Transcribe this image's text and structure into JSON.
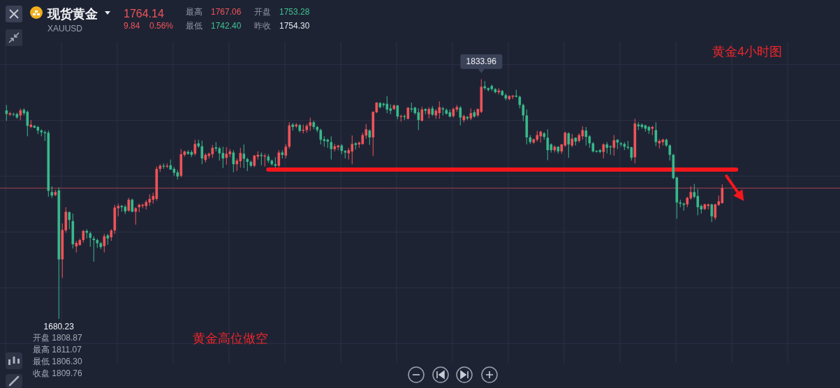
{
  "chart_data": {
    "type": "candlestick",
    "title": "现货黄金",
    "subtitle": "XAUUSD",
    "categories": [
      null,
      null,
      null,
      null,
      null,
      null,
      null,
      null,
      null,
      null,
      null,
      null,
      null,
      null,
      null,
      null,
      null,
      null,
      null,
      null,
      null,
      null,
      null,
      null,
      null,
      null,
      null,
      null,
      null,
      null,
      null,
      null,
      null,
      null,
      null,
      null,
      null,
      null,
      null,
      null,
      null,
      null,
      null,
      null,
      null,
      null,
      null,
      null,
      null,
      null,
      null,
      null,
      null,
      null,
      null,
      null,
      null,
      null,
      null,
      null,
      null,
      null,
      null,
      null,
      null,
      null,
      null,
      null,
      null,
      null,
      null,
      null,
      null,
      null,
      null,
      null,
      null,
      null,
      null,
      null,
      null,
      null,
      null,
      null,
      null,
      null,
      null,
      null,
      null,
      null,
      null,
      null,
      null,
      null,
      null,
      null,
      null,
      null,
      null,
      null,
      null,
      null,
      null,
      null,
      null,
      null,
      null,
      null,
      null,
      null,
      null,
      null,
      null,
      null,
      null,
      null,
      null,
      null,
      null,
      null,
      null,
      null,
      null,
      null,
      null,
      null,
      null,
      null,
      null,
      null,
      null,
      null,
      null,
      null,
      null,
      null,
      null,
      null,
      null,
      null,
      null,
      null,
      null,
      null,
      null,
      null,
      null,
      null,
      null,
      null,
      null,
      null,
      null,
      null,
      null,
      null,
      null,
      null,
      null,
      null,
      null,
      null,
      null,
      null,
      null,
      null,
      null,
      null,
      null,
      null,
      null,
      null,
      null,
      null,
      null,
      null,
      null,
      null,
      null,
      null,
      null,
      null,
      null,
      null,
      null,
      null,
      null,
      null,
      null,
      null,
      null,
      null,
      null,
      null,
      null,
      null,
      null,
      null,
      null,
      null,
      null,
      null,
      null,
      null,
      null,
      null,
      null,
      null,
      null,
      null
    ],
    "ohlc": [
      [
        1814.0,
        1817.5,
        1807.3,
        1811.7
      ],
      [
        1811.3,
        1813.1,
        1810.4,
        1812.2
      ],
      [
        1811.7,
        1812.6,
        1810.4,
        1811.3
      ],
      [
        1811.7,
        1812.6,
        1808.6,
        1809.5
      ],
      [
        1810.8,
        1815.3,
        1807.7,
        1814.0
      ],
      [
        1814.4,
        1815.3,
        1810.8,
        1812.2
      ],
      [
        1813.1,
        1814.0,
        1797.4,
        1804.1
      ],
      [
        1803.4,
        1807.8,
        1802.7,
        1804.9
      ],
      [
        1804.1,
        1804.6,
        1802.8,
        1802.9
      ],
      [
        1803.4,
        1804.1,
        1798.9,
        1801.1
      ],
      [
        1801.1,
        1801.9,
        1797.4,
        1800.0
      ],
      [
        1800.0,
        1801.1,
        1794.4,
        1799.3
      ],
      [
        1799.7,
        1801.1,
        1758.6,
        1762.4
      ],
      [
        1761.6,
        1765.3,
        1757.9,
        1759.4
      ],
      [
        1759.7,
        1763.0,
        1759.0,
        1761.6
      ],
      [
        1762.7,
        1764.6,
        1680.23,
        1718.4
      ],
      [
        1718.4,
        1741.5,
        1706.5,
        1737.3
      ],
      [
        1737.0,
        1751.9,
        1735.5,
        1749.0
      ],
      [
        1748.7,
        1749.2,
        1737.8,
        1743.7
      ],
      [
        1743.0,
        1747.8,
        1725.4,
        1728.1
      ],
      [
        1726.7,
        1730.3,
        1722.9,
        1729.0
      ],
      [
        1727.6,
        1731.8,
        1727.3,
        1730.8
      ],
      [
        1730.8,
        1737.3,
        1729.3,
        1736.7
      ],
      [
        1736.7,
        1737.8,
        1731.8,
        1735.5
      ],
      [
        1735.2,
        1736.3,
        1726.6,
        1732.2
      ],
      [
        1731.8,
        1733.3,
        1716.9,
        1730.8
      ],
      [
        1730.8,
        1731.8,
        1725.8,
        1728.8
      ],
      [
        1728.8,
        1729.6,
        1725.1,
        1726.3
      ],
      [
        1726.9,
        1734.8,
        1722.9,
        1733.3
      ],
      [
        1733.8,
        1734.8,
        1727.8,
        1731.8
      ],
      [
        1732.6,
        1737.8,
        1730.3,
        1737.0
      ],
      [
        1737.0,
        1753.4,
        1734.8,
        1751.7
      ],
      [
        1751.2,
        1754.2,
        1746.0,
        1752.7
      ],
      [
        1752.7,
        1753.4,
        1749.0,
        1751.9
      ],
      [
        1752.2,
        1753.4,
        1747.5,
        1749.2
      ],
      [
        1749.7,
        1757.9,
        1749.0,
        1756.7
      ],
      [
        1756.7,
        1757.4,
        1748.7,
        1749.0
      ],
      [
        1749.0,
        1751.9,
        1740.7,
        1751.2
      ],
      [
        1751.9,
        1754.2,
        1748.7,
        1753.4
      ],
      [
        1752.7,
        1754.2,
        1751.2,
        1753.4
      ],
      [
        1752.7,
        1756.4,
        1750.5,
        1755.2
      ],
      [
        1754.9,
        1760.2,
        1752.7,
        1757.2
      ],
      [
        1756.7,
        1761.2,
        1754.2,
        1759.1
      ],
      [
        1757.2,
        1778.0,
        1756.1,
        1776.5
      ],
      [
        1776.5,
        1779.5,
        1774.6,
        1778.5
      ],
      [
        1778.5,
        1780.0,
        1776.5,
        1777.9
      ],
      [
        1777.9,
        1780.0,
        1777.0,
        1778.5
      ],
      [
        1778.8,
        1782.5,
        1775.8,
        1776.1
      ],
      [
        1776.5,
        1777.6,
        1772.1,
        1774.0
      ],
      [
        1774.3,
        1775.8,
        1769.6,
        1771.6
      ],
      [
        1772.1,
        1789.2,
        1771.0,
        1785.9
      ],
      [
        1785.5,
        1788.2,
        1784.4,
        1787.7
      ],
      [
        1787.4,
        1788.5,
        1785.5,
        1786.2
      ],
      [
        1787.3,
        1788.5,
        1784.0,
        1785.5
      ],
      [
        1786.2,
        1795.2,
        1785.0,
        1792.5
      ],
      [
        1792.9,
        1795.2,
        1790.0,
        1791.0
      ],
      [
        1791.0,
        1794.7,
        1779.5,
        1783.2
      ],
      [
        1782.2,
        1786.5,
        1780.6,
        1785.5
      ],
      [
        1784.8,
        1787.0,
        1783.2,
        1786.2
      ],
      [
        1785.9,
        1791.9,
        1783.6,
        1790.0
      ],
      [
        1790.3,
        1793.7,
        1787.7,
        1789.5
      ],
      [
        1789.7,
        1790.7,
        1781.8,
        1786.5
      ],
      [
        1786.7,
        1790.7,
        1777.0,
        1783.2
      ],
      [
        1783.6,
        1790.4,
        1779.1,
        1786.2
      ],
      [
        1785.9,
        1789.2,
        1784.0,
        1787.7
      ],
      [
        1787.0,
        1788.5,
        1774.3,
        1779.5
      ],
      [
        1779.5,
        1783.2,
        1775.1,
        1781.8
      ],
      [
        1781.4,
        1790.0,
        1777.3,
        1786.7
      ],
      [
        1786.2,
        1792.2,
        1777.0,
        1783.0
      ],
      [
        1782.8,
        1783.6,
        1775.1,
        1781.0
      ],
      [
        1781.0,
        1781.8,
        1777.6,
        1778.5
      ],
      [
        1778.5,
        1785.5,
        1777.6,
        1785.0
      ],
      [
        1784.4,
        1787.7,
        1782.5,
        1785.5
      ],
      [
        1785.5,
        1787.0,
        1778.8,
        1784.8
      ],
      [
        1784.4,
        1786.2,
        1778.0,
        1785.0
      ],
      [
        1784.4,
        1785.9,
        1780.3,
        1781.8
      ],
      [
        1781.8,
        1782.5,
        1778.5,
        1779.5
      ],
      [
        1779.5,
        1784.0,
        1777.3,
        1778.5
      ],
      [
        1778.5,
        1788.5,
        1777.6,
        1787.0
      ],
      [
        1787.0,
        1788.5,
        1783.2,
        1785.5
      ],
      [
        1785.0,
        1792.5,
        1783.2,
        1790.7
      ],
      [
        1790.7,
        1806.4,
        1789.5,
        1804.4
      ],
      [
        1804.9,
        1805.9,
        1801.1,
        1803.4
      ],
      [
        1803.8,
        1805.9,
        1802.7,
        1804.9
      ],
      [
        1804.6,
        1805.3,
        1800.0,
        1800.9
      ],
      [
        1800.9,
        1804.9,
        1799.3,
        1801.6
      ],
      [
        1801.4,
        1805.3,
        1799.7,
        1804.1
      ],
      [
        1804.1,
        1809.4,
        1800.9,
        1806.4
      ],
      [
        1806.4,
        1807.4,
        1801.9,
        1803.4
      ],
      [
        1803.4,
        1804.1,
        1800.0,
        1801.4
      ],
      [
        1801.4,
        1802.3,
        1792.2,
        1795.2
      ],
      [
        1795.5,
        1797.4,
        1790.7,
        1794.4
      ],
      [
        1795.2,
        1795.9,
        1790.0,
        1794.0
      ],
      [
        1793.7,
        1797.4,
        1782.5,
        1789.2
      ],
      [
        1789.2,
        1792.5,
        1787.7,
        1791.0
      ],
      [
        1790.4,
        1791.9,
        1788.5,
        1791.5
      ],
      [
        1791.5,
        1792.5,
        1785.9,
        1788.0
      ],
      [
        1788.0,
        1788.5,
        1783.2,
        1787.0
      ],
      [
        1786.5,
        1790.0,
        1782.5,
        1788.5
      ],
      [
        1787.7,
        1797.9,
        1779.5,
        1792.5
      ],
      [
        1792.9,
        1793.7,
        1788.9,
        1791.9
      ],
      [
        1792.2,
        1794.0,
        1790.0,
        1793.3
      ],
      [
        1792.5,
        1799.7,
        1791.9,
        1798.2
      ],
      [
        1797.9,
        1805.3,
        1795.9,
        1801.9
      ],
      [
        1801.1,
        1801.9,
        1791.9,
        1796.7
      ],
      [
        1796.7,
        1813.4,
        1784.8,
        1813.1
      ],
      [
        1812.8,
        1819.3,
        1812.3,
        1819.0
      ],
      [
        1818.8,
        1819.3,
        1815.3,
        1816.1
      ],
      [
        1818.3,
        1819.0,
        1816.1,
        1817.5
      ],
      [
        1818.3,
        1823.2,
        1812.3,
        1814.6
      ],
      [
        1815.3,
        1817.9,
        1811.6,
        1813.8
      ],
      [
        1814.9,
        1817.9,
        1814.3,
        1817.2
      ],
      [
        1817.2,
        1817.5,
        1808.3,
        1810.1
      ],
      [
        1809.8,
        1811.3,
        1806.8,
        1810.4
      ],
      [
        1810.4,
        1811.3,
        1807.8,
        1809.8
      ],
      [
        1808.6,
        1816.1,
        1808.3,
        1815.8
      ],
      [
        1815.3,
        1819.0,
        1812.8,
        1814.6
      ],
      [
        1815.8,
        1816.3,
        1811.3,
        1812.3
      ],
      [
        1812.8,
        1815.3,
        1801.4,
        1807.8
      ],
      [
        1807.4,
        1816.3,
        1806.8,
        1814.6
      ],
      [
        1814.9,
        1815.3,
        1811.6,
        1813.8
      ],
      [
        1811.6,
        1816.1,
        1808.9,
        1814.9
      ],
      [
        1815.3,
        1816.8,
        1810.4,
        1811.3
      ],
      [
        1810.8,
        1814.9,
        1808.6,
        1813.8
      ],
      [
        1812.3,
        1819.8,
        1808.6,
        1816.1
      ],
      [
        1815.3,
        1816.3,
        1810.8,
        1814.6
      ],
      [
        1814.3,
        1815.3,
        1811.3,
        1811.9
      ],
      [
        1812.8,
        1814.6,
        1809.4,
        1810.1
      ],
      [
        1810.4,
        1815.8,
        1809.4,
        1814.9
      ],
      [
        1814.6,
        1817.5,
        1813.1,
        1816.1
      ],
      [
        1815.8,
        1816.8,
        1804.4,
        1809.4
      ],
      [
        1807.8,
        1811.3,
        1806.4,
        1810.4
      ],
      [
        1809.8,
        1810.4,
        1807.8,
        1808.9
      ],
      [
        1808.9,
        1815.3,
        1807.8,
        1812.3
      ],
      [
        1812.8,
        1814.3,
        1809.4,
        1810.1
      ],
      [
        1810.8,
        1815.3,
        1809.8,
        1814.9
      ],
      [
        1813.1,
        1833.96,
        1812.3,
        1829.2
      ],
      [
        1829.5,
        1832.8,
        1827.2,
        1828.3
      ],
      [
        1828.3,
        1828.7,
        1826.2,
        1827.2
      ],
      [
        1829.7,
        1830.6,
        1826.5,
        1827.7
      ],
      [
        1827.7,
        1828.3,
        1825.0,
        1825.7
      ],
      [
        1825.7,
        1828.3,
        1824.3,
        1826.8
      ],
      [
        1826.5,
        1827.2,
        1823.2,
        1823.8
      ],
      [
        1823.8,
        1825.0,
        1820.5,
        1821.7
      ],
      [
        1821.3,
        1823.8,
        1820.5,
        1823.2
      ],
      [
        1822.8,
        1823.8,
        1821.3,
        1823.5
      ],
      [
        1823.5,
        1827.2,
        1822.3,
        1822.8
      ],
      [
        1822.8,
        1823.5,
        1815.3,
        1817.5
      ],
      [
        1817.5,
        1818.3,
        1807.1,
        1810.8
      ],
      [
        1810.8,
        1814.6,
        1792.2,
        1796.7
      ],
      [
        1796.7,
        1798.2,
        1792.5,
        1793.7
      ],
      [
        1793.4,
        1795.9,
        1792.5,
        1795.5
      ],
      [
        1795.2,
        1800.9,
        1794.0,
        1798.2
      ],
      [
        1797.4,
        1800.9,
        1793.4,
        1800.4
      ],
      [
        1799.3,
        1800.0,
        1795.2,
        1797.0
      ],
      [
        1796.5,
        1801.9,
        1782.1,
        1788.5
      ],
      [
        1792.2,
        1792.9,
        1787.0,
        1788.5
      ],
      [
        1788.5,
        1791.5,
        1787.0,
        1790.7
      ],
      [
        1790.7,
        1791.0,
        1786.2,
        1787.7
      ],
      [
        1787.7,
        1792.5,
        1786.2,
        1792.2
      ],
      [
        1791.5,
        1800.4,
        1790.7,
        1799.7
      ],
      [
        1799.3,
        1800.0,
        1783.6,
        1792.2
      ],
      [
        1791.5,
        1798.9,
        1790.4,
        1795.9
      ],
      [
        1796.5,
        1796.7,
        1791.5,
        1794.0
      ],
      [
        1794.4,
        1799.3,
        1793.4,
        1798.2
      ],
      [
        1797.4,
        1803.8,
        1795.2,
        1801.4
      ],
      [
        1801.1,
        1803.4,
        1791.5,
        1797.0
      ],
      [
        1797.4,
        1798.2,
        1790.0,
        1792.9
      ],
      [
        1792.9,
        1793.7,
        1787.0,
        1787.7
      ],
      [
        1788.0,
        1788.5,
        1787.0,
        1787.4
      ],
      [
        1788.5,
        1789.2,
        1786.5,
        1787.4
      ],
      [
        1787.4,
        1792.9,
        1783.2,
        1792.2
      ],
      [
        1792.2,
        1793.7,
        1786.5,
        1790.0
      ],
      [
        1791.0,
        1791.5,
        1785.5,
        1790.4
      ],
      [
        1790.0,
        1798.2,
        1785.0,
        1794.9
      ],
      [
        1795.2,
        1795.5,
        1789.2,
        1793.4
      ],
      [
        1792.9,
        1793.7,
        1790.7,
        1792.2
      ],
      [
        1792.5,
        1793.7,
        1788.5,
        1790.7
      ],
      [
        1790.7,
        1794.4,
        1788.9,
        1790.0
      ],
      [
        1790.4,
        1790.7,
        1781.8,
        1783.6
      ],
      [
        1784.0,
        1808.6,
        1780.0,
        1805.6
      ],
      [
        1804.9,
        1806.4,
        1801.4,
        1803.8
      ],
      [
        1804.9,
        1805.6,
        1802.3,
        1803.4
      ],
      [
        1804.4,
        1804.9,
        1800.4,
        1802.3
      ],
      [
        1803.4,
        1804.1,
        1798.9,
        1801.1
      ],
      [
        1802.3,
        1804.1,
        1798.2,
        1803.4
      ],
      [
        1801.4,
        1806.4,
        1791.0,
        1793.7
      ],
      [
        1792.9,
        1795.5,
        1789.5,
        1794.4
      ],
      [
        1793.7,
        1795.9,
        1791.5,
        1795.2
      ],
      [
        1795.2,
        1795.9,
        1790.7,
        1791.5
      ],
      [
        1791.5,
        1792.2,
        1781.8,
        1785.5
      ],
      [
        1785.5,
        1786.2,
        1769.8,
        1770.6
      ],
      [
        1771.0,
        1771.3,
        1744.5,
        1754.9
      ],
      [
        1754.9,
        1756.7,
        1751.9,
        1754.2
      ],
      [
        1754.2,
        1754.9,
        1749.7,
        1753.4
      ],
      [
        1753.7,
        1758.6,
        1751.9,
        1757.9
      ],
      [
        1757.6,
        1765.3,
        1756.7,
        1761.6
      ],
      [
        1761.6,
        1766.8,
        1757.6,
        1758.6
      ],
      [
        1759.1,
        1763.6,
        1746.7,
        1751.9
      ],
      [
        1752.7,
        1753.7,
        1747.8,
        1750.5
      ],
      [
        1750.8,
        1754.2,
        1750.1,
        1753.7
      ],
      [
        1752.7,
        1754.2,
        1750.5,
        1753.7
      ],
      [
        1753.7,
        1754.2,
        1742.4,
        1746.0
      ],
      [
        1745.2,
        1754.2,
        1743.7,
        1753.7
      ],
      [
        1753.4,
        1759.4,
        1752.7,
        1755.7
      ],
      [
        1754.6,
        1766.6,
        1754.2,
        1764.14
      ],
      null,
      null,
      null,
      null
    ],
    "colors": [
      "#38b88a",
      "#ee5458",
      "#38b88a",
      "#38b88a",
      "#ee5458",
      "#38b88a",
      "#38b88a",
      "#ee5458",
      "#38b88a",
      "#38b88a",
      "#38b88a",
      "#38b88a",
      "#38b88a",
      "#38b88a",
      "#ee5458",
      "#38b88a",
      "#ee5458",
      "#ee5458",
      "#38b88a",
      "#38b88a",
      "#ee5458",
      "#ee5458",
      "#ee5458",
      "#38b88a",
      "#38b88a",
      "#38b88a",
      "#38b88a",
      "#38b88a",
      "#ee5458",
      "#38b88a",
      "#ee5458",
      "#ee5458",
      "#ee5458",
      "#38b88a",
      "#38b88a",
      "#ee5458",
      "#38b88a",
      "#ee5458",
      "#ee5458",
      "#ee5458",
      "#ee5458",
      "#ee5458",
      "#ee5458",
      "#ee5458",
      "#ee5458",
      "#38b88a",
      "#ee5458",
      "#38b88a",
      "#38b88a",
      "#38b88a",
      "#ee5458",
      "#ee5458",
      "#38b88a",
      "#38b88a",
      "#ee5458",
      "#38b88a",
      "#38b88a",
      "#ee5458",
      "#ee5458",
      "#ee5458",
      "#38b88a",
      "#38b88a",
      "#38b88a",
      "#ee5458",
      "#ee5458",
      "#38b88a",
      "#ee5458",
      "#ee5458",
      "#38b88a",
      "#38b88a",
      "#38b88a",
      "#ee5458",
      "#ee5458",
      "#38b88a",
      "#ee5458",
      "#38b88a",
      "#38b88a",
      "#38b88a",
      "#ee5458",
      "#38b88a",
      "#ee5458",
      "#ee5458",
      "#38b88a",
      "#ee5458",
      "#38b88a",
      "#ee5458",
      "#ee5458",
      "#ee5458",
      "#38b88a",
      "#38b88a",
      "#38b88a",
      "#38b88a",
      "#38b88a",
      "#38b88a",
      "#ee5458",
      "#ee5458",
      "#38b88a",
      "#38b88a",
      "#ee5458",
      "#ee5458",
      "#38b88a",
      "#ee5458",
      "#ee5458",
      "#ee5458",
      "#38b88a",
      "#ee5458",
      "#ee5458",
      "#38b88a",
      "#38b88a",
      "#38b88a",
      "#38b88a",
      "#ee5458",
      "#38b88a",
      "#ee5458",
      "#38b88a",
      "#ee5458",
      "#38b88a",
      "#38b88a",
      "#38b88a",
      "#ee5458",
      "#38b88a",
      "#ee5458",
      "#38b88a",
      "#ee5458",
      "#ee5458",
      "#38b88a",
      "#38b88a",
      "#38b88a",
      "#ee5458",
      "#ee5458",
      "#38b88a",
      "#ee5458",
      "#38b88a",
      "#ee5458",
      "#38b88a",
      "#ee5458",
      "#ee5458",
      "#38b88a",
      "#38b88a",
      "#38b88a",
      "#38b88a",
      "#ee5458",
      "#38b88a",
      "#38b88a",
      "#ee5458",
      "#ee5458",
      "#38b88a",
      "#38b88a",
      "#38b88a",
      "#38b88a",
      "#38b88a",
      "#ee5458",
      "#ee5458",
      "#ee5458",
      "#38b88a",
      "#38b88a",
      "#38b88a",
      "#ee5458",
      "#38b88a",
      "#ee5458",
      "#ee5458",
      "#38b88a",
      "#ee5458",
      "#38b88a",
      "#ee5458",
      "#ee5458",
      "#38b88a",
      "#38b88a",
      "#38b88a",
      "#38b88a",
      "#38b88a",
      "#ee5458",
      "#38b88a",
      "#38b88a",
      "#ee5458",
      "#38b88a",
      "#38b88a",
      "#38b88a",
      "#38b88a",
      "#38b88a",
      "#ee5458",
      "#38b88a",
      "#38b88a",
      "#38b88a",
      "#38b88a",
      "#ee5458",
      "#38b88a",
      "#ee5458",
      "#ee5458",
      "#38b88a",
      "#38b88a",
      "#38b88a",
      "#38b88a",
      "#38b88a",
      "#38b88a",
      "#ee5458",
      "#ee5458",
      "#38b88a",
      "#38b88a",
      "#38b88a",
      "#ee5458",
      "#ee5458",
      "#38b88a",
      "#ee5458",
      "#ee5458",
      "#ee5458",
      null,
      null,
      null,
      null
    ],
    "ylim": [
      1652,
      1858
    ],
    "yticks": [
      {
        "value": 1843.4,
        "label": null
      },
      {
        "value": 1807.6,
        "label": null
      },
      {
        "value": 1771.8,
        "label": null
      },
      {
        "value": 1736.0,
        "label": null
      },
      {
        "value": 1700.2,
        "label": null
      },
      {
        "value": 1664.4,
        "label": null
      }
    ],
    "grid": true,
    "series": [
      {
        "type": "line",
        "color": "#f5161c",
        "values": [
          null,
          null,
          null,
          null,
          null,
          null,
          null,
          null,
          null,
          null,
          null,
          null,
          null,
          null,
          null,
          null,
          null,
          null,
          null,
          null,
          null,
          null,
          null,
          null,
          null,
          null,
          null,
          null,
          null,
          null,
          null,
          null,
          null,
          null,
          null,
          null,
          null,
          null,
          null,
          null,
          null,
          null,
          null,
          null,
          null,
          null,
          null,
          null,
          null,
          null,
          null,
          null,
          null,
          null,
          null,
          null,
          null,
          null,
          null,
          null,
          null,
          null,
          null,
          null,
          null,
          null,
          null,
          null,
          null,
          null,
          null,
          null,
          null,
          null,
          null,
          1776.0,
          1776.0,
          1776.0,
          1776.0,
          1776.0,
          1776.0,
          1776.0,
          1776.0,
          1776.0,
          1776.0,
          1776.0,
          1776.0,
          1776.0,
          1776.0,
          1776.0,
          1776.0,
          1776.0,
          1776.0,
          1776.0,
          1776.0,
          1776.0,
          1776.0,
          1776.0,
          1776.0,
          1776.0,
          1776.0,
          1776.0,
          1776.0,
          1776.0,
          1776.0,
          1776.0,
          1776.0,
          1776.0,
          1776.0,
          1776.0,
          1776.0,
          1776.0,
          1776.0,
          1776.0,
          1776.0,
          1776.0,
          1776.0,
          1776.0,
          1776.0,
          1776.0,
          1776.0,
          1776.0,
          1776.0,
          1776.0,
          1776.0,
          1776.0,
          1776.0,
          1776.0,
          1776.0,
          1776.0,
          1776.0,
          1776.0,
          1776.0,
          1776.0,
          1776.0,
          1776.0,
          1776.0,
          1776.0,
          1776.0,
          1776.0,
          1776.0,
          1776.0,
          1776.0,
          1776.0,
          1776.0,
          1776.0,
          1776.0,
          1776.0,
          1776.0,
          1776.0,
          1776.0,
          1776.0,
          1776.0,
          1776.0,
          1776.0,
          1776.0,
          1776.0,
          1776.0,
          1776.0,
          1776.0,
          1776.0,
          1776.0,
          1776.0,
          1776.0,
          1776.0,
          1776.0,
          1776.0,
          1776.0,
          1776.0,
          1776.0,
          1776.0,
          1776.0,
          1776.0,
          1776.0,
          1776.0,
          1776.0,
          1776.0,
          1776.0,
          1776.0,
          1776.0,
          1776.0,
          1776.0,
          1776.0,
          1776.0,
          1776.0,
          1776.0,
          1776.0,
          1776.0,
          1776.0,
          1776.0,
          1776.0,
          1776.0,
          1776.0,
          1776.0,
          1776.0,
          1776.0,
          1776.0,
          1776.0,
          1776.0,
          1776.0,
          1776.0,
          1776.0,
          1776.0,
          1776.0,
          1776.0,
          1776.0,
          1776.0,
          1776.0,
          1776.0,
          1776.0
        ]
      }
    ],
    "ref_lines": [
      {
        "axis": "y",
        "value": 1764.14,
        "color": "#a3404b"
      }
    ],
    "annotations": [
      "1764.14",
      "9.84",
      "0.56%",
      "最高",
      "1767.06",
      "开盘",
      "1753.28",
      "最低",
      "1742.40",
      "昨收",
      "1754.30",
      "黄金4小时图",
      "黄金高位做空",
      "开盘 1808.87",
      "最高 1811.07",
      "最低 1806.30",
      "收盘 1809.76",
      {
        "text": "1833.96",
        "y": 1833.96
      },
      {
        "text": "1680.23",
        "y": 1680.23
      }
    ]
  }
}
